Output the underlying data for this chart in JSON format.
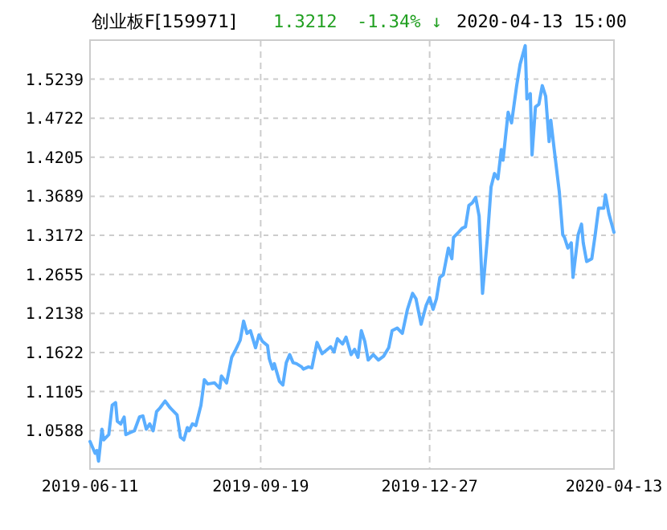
{
  "chart_data": {
    "type": "line",
    "title": "创业板F[159971]",
    "annotations": [
      "1.3212",
      "-1.34% ↓",
      "2020-04-13 15:00"
    ],
    "xlim": [
      "2019-06-11",
      "2020-04-13"
    ],
    "xticks": [
      {
        "value": "2019-06-11",
        "label": "2019-06-11"
      },
      {
        "value": "2019-09-19",
        "label": "2019-09-19"
      },
      {
        "value": "2019-12-27",
        "label": "2019-12-27"
      },
      {
        "value": "2020-04-13",
        "label": "2020-04-13"
      }
    ],
    "ylim": [
      1.008,
      1.5755
    ],
    "yticks": [
      1.0588,
      1.1105,
      1.1622,
      1.2138,
      1.2655,
      1.3172,
      1.3689,
      1.4205,
      1.4722,
      1.5239
    ],
    "grid": true,
    "marker": "none",
    "line_style": "solid",
    "x": [
      "2019-06-11",
      "2019-06-14",
      "2019-06-15",
      "2019-06-16",
      "2019-06-18",
      "2019-06-19",
      "2019-06-22",
      "2019-06-24",
      "2019-06-26",
      "2019-06-27",
      "2019-06-29",
      "2019-07-01",
      "2019-07-02",
      "2019-07-04",
      "2019-07-07",
      "2019-07-10",
      "2019-07-12",
      "2019-07-14",
      "2019-07-16",
      "2019-07-18",
      "2019-07-20",
      "2019-07-22",
      "2019-07-25",
      "2019-07-28",
      "2019-08-01",
      "2019-08-03",
      "2019-08-05",
      "2019-08-07",
      "2019-08-08",
      "2019-08-10",
      "2019-08-12",
      "2019-08-15",
      "2019-08-17",
      "2019-08-19",
      "2019-08-23",
      "2019-08-26",
      "2019-08-27",
      "2019-08-30",
      "2019-09-02",
      "2019-09-04",
      "2019-09-07",
      "2019-09-09",
      "2019-09-11",
      "2019-09-13",
      "2019-09-16",
      "2019-09-18",
      "2019-09-20",
      "2019-09-23",
      "2019-09-24",
      "2019-09-26",
      "2019-09-27",
      "2019-09-30",
      "2019-10-02",
      "2019-10-04",
      "2019-10-06",
      "2019-10-08",
      "2019-10-10",
      "2019-10-13",
      "2019-10-14",
      "2019-10-17",
      "2019-10-19",
      "2019-10-22",
      "2019-10-25",
      "2019-10-27",
      "2019-10-30",
      "2019-11-01",
      "2019-11-03",
      "2019-11-06",
      "2019-11-08",
      "2019-11-11",
      "2019-11-13",
      "2019-11-15",
      "2019-11-17",
      "2019-11-19",
      "2019-11-21",
      "2019-11-24",
      "2019-11-27",
      "2019-11-30",
      "2019-12-03",
      "2019-12-05",
      "2019-12-08",
      "2019-12-11",
      "2019-12-14",
      "2019-12-17",
      "2019-12-19",
      "2019-12-22",
      "2019-12-25",
      "2019-12-27",
      "2019-12-29",
      "2019-12-31",
      "2020-01-02",
      "2020-01-04",
      "2020-01-07",
      "2020-01-09",
      "2020-01-10",
      "2020-01-13",
      "2020-01-15",
      "2020-01-17",
      "2020-01-19",
      "2020-01-21",
      "2020-01-23",
      "2020-01-25",
      "2020-01-27",
      "2020-01-30",
      "2020-02-01",
      "2020-02-03",
      "2020-02-05",
      "2020-02-07",
      "2020-02-08",
      "2020-02-11",
      "2020-02-13",
      "2020-02-16",
      "2020-02-18",
      "2020-02-21",
      "2020-02-22",
      "2020-02-24",
      "2020-02-25",
      "2020-02-27",
      "2020-02-29",
      "2020-03-02",
      "2020-03-04",
      "2020-03-06",
      "2020-03-07",
      "2020-03-09",
      "2020-03-12",
      "2020-03-14",
      "2020-03-15",
      "2020-03-17",
      "2020-03-19",
      "2020-03-20",
      "2020-03-23",
      "2020-03-25",
      "2020-03-26",
      "2020-03-28",
      "2020-03-31",
      "2020-04-02",
      "2020-04-04",
      "2020-04-07",
      "2020-04-08",
      "2020-04-10",
      "2020-04-13"
    ],
    "series": [
      {
        "color": "#5aaeff",
        "values": [
          1.0444,
          1.0288,
          1.0324,
          1.0183,
          1.0606,
          1.0465,
          1.0535,
          1.0923,
          1.0958,
          1.0711,
          1.0676,
          1.0768,
          1.0535,
          1.0556,
          1.0585,
          1.0768,
          1.0782,
          1.0606,
          1.0676,
          1.0585,
          1.0838,
          1.0888,
          1.0979,
          1.0888,
          1.0796,
          1.05,
          1.0465,
          1.0627,
          1.0585,
          1.0676,
          1.0655,
          1.0923,
          1.1261,
          1.1205,
          1.1219,
          1.1149,
          1.1311,
          1.1219,
          1.1557,
          1.1642,
          1.1783,
          1.2037,
          1.1875,
          1.191,
          1.1684,
          1.1854,
          1.1769,
          1.1713,
          1.1543,
          1.1402,
          1.1473,
          1.124,
          1.1191,
          1.1487,
          1.1593,
          1.1487,
          1.1473,
          1.1431,
          1.1402,
          1.1431,
          1.1417,
          1.1755,
          1.1607,
          1.1642,
          1.1698,
          1.1628,
          1.1804,
          1.1734,
          1.1825,
          1.1593,
          1.1663,
          1.1557,
          1.191,
          1.1769,
          1.1522,
          1.1593,
          1.1522,
          1.1572,
          1.1684,
          1.191,
          1.1945,
          1.1875,
          1.2192,
          1.2404,
          1.2333,
          1.1995,
          1.2248,
          1.2347,
          1.2192,
          1.2333,
          1.2615,
          1.265,
          1.3003,
          1.2862,
          1.3144,
          1.3214,
          1.3264,
          1.3285,
          1.3567,
          1.3602,
          1.3673,
          1.3426,
          1.2404,
          1.3179,
          1.3814,
          1.399,
          1.3919,
          1.4307,
          1.4166,
          1.4801,
          1.466,
          1.5153,
          1.5435,
          1.5682,
          1.4977,
          1.5047,
          1.4236,
          1.4871,
          1.4906,
          1.5153,
          1.5012,
          1.4413,
          1.4695,
          1.4307,
          1.3743,
          1.3179,
          1.3144,
          1.3003,
          1.3073,
          1.2615,
          1.3179,
          1.332,
          1.3073,
          1.2826,
          1.2862,
          1.3179,
          1.3532,
          1.3532,
          1.3708,
          1.3461,
          1.3212
        ]
      }
    ]
  }
}
